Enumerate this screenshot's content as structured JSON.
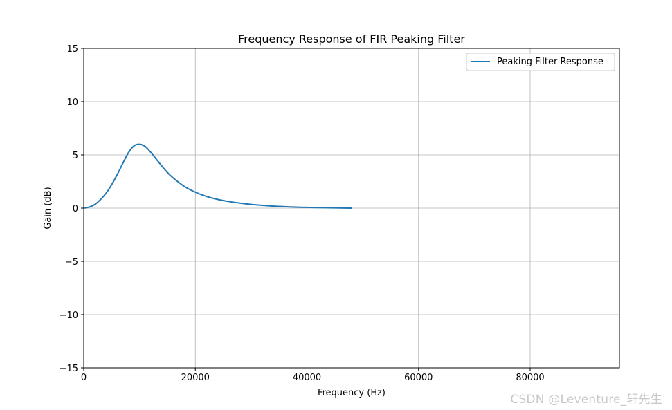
{
  "chart_data": {
    "type": "line",
    "title": "Frequency Response of FIR Peaking Filter",
    "xlabel": "Frequency (Hz)",
    "ylabel": "Gain (dB)",
    "xlim": [
      0,
      96000
    ],
    "ylim": [
      -15,
      15
    ],
    "xticks": [
      0,
      20000,
      40000,
      60000,
      80000
    ],
    "xtick_labels": [
      "0",
      "20000",
      "40000",
      "60000",
      "80000"
    ],
    "yticks": [
      -15,
      -10,
      -5,
      0,
      5,
      10,
      15
    ],
    "ytick_labels": [
      "−15",
      "−10",
      "−5",
      "0",
      "5",
      "10",
      "15"
    ],
    "grid": true,
    "legend_position": "top-right",
    "series": [
      {
        "name": "Peaking Filter Response",
        "color": "#1f77b4",
        "x": [
          0,
          1000,
          2000,
          3000,
          4000,
          5000,
          6000,
          7000,
          8000,
          9000,
          10000,
          11000,
          12000,
          13000,
          14000,
          15000,
          16000,
          18000,
          20000,
          22000,
          24000,
          26000,
          28000,
          30000,
          32000,
          34000,
          36000,
          38000,
          40000,
          42000,
          44000,
          46000,
          48000
        ],
        "values": [
          0.0,
          0.1,
          0.35,
          0.8,
          1.4,
          2.2,
          3.15,
          4.2,
          5.2,
          5.85,
          6.0,
          5.8,
          5.25,
          4.6,
          3.95,
          3.35,
          2.85,
          2.05,
          1.5,
          1.1,
          0.82,
          0.62,
          0.47,
          0.35,
          0.26,
          0.19,
          0.14,
          0.1,
          0.07,
          0.05,
          0.03,
          0.015,
          0.0
        ]
      }
    ]
  },
  "watermark": "CSDN @Leventure_轩先生"
}
